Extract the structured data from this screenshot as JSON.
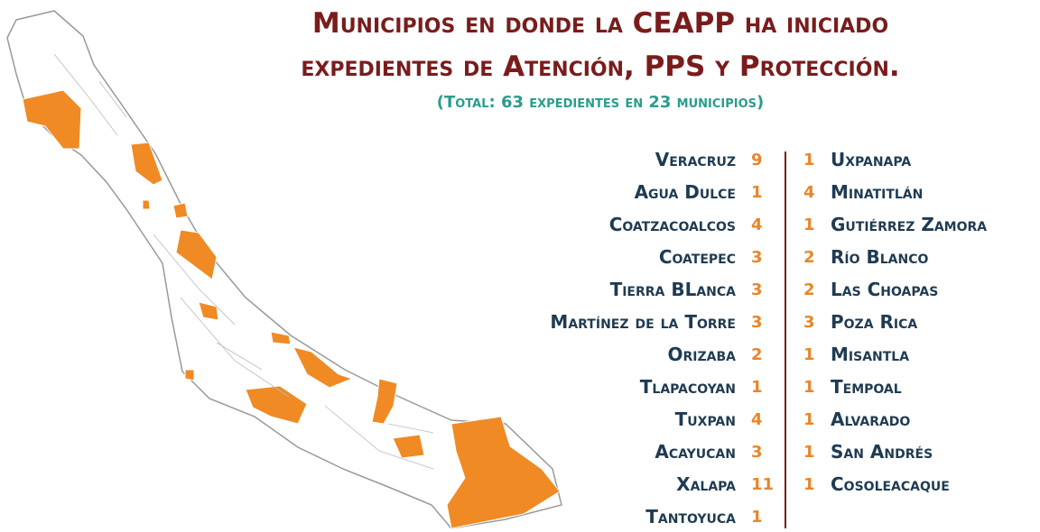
{
  "title_line1": "Municipios en donde la CEAPP ha iniciado",
  "title_line2": "expedientes de Atención, PPS y Protección.",
  "subtitle": "(Total: 63 expedientes en 23 municipios)",
  "left_list": [
    {
      "name": "Veracruz",
      "count": 9
    },
    {
      "name": "Agua Dulce",
      "count": 1
    },
    {
      "name": "Coatzacoalcos",
      "count": 4
    },
    {
      "name": "Coatepec",
      "count": 3
    },
    {
      "name": "Tierra BLanca",
      "count": 3
    },
    {
      "name": "Martínez de la Torre",
      "count": 3
    },
    {
      "name": "Orizaba",
      "count": 2
    },
    {
      "name": "Tlapacoyan",
      "count": 1
    },
    {
      "name": "Tuxpan",
      "count": 4
    },
    {
      "name": "Acayucan",
      "count": 3
    },
    {
      "name": "Xalapa",
      "count": 11
    },
    {
      "name": "Tantoyuca",
      "count": 1
    }
  ],
  "right_list": [
    {
      "count": 1,
      "name": "Uxpanapa"
    },
    {
      "count": 4,
      "name": "Minatitlán"
    },
    {
      "count": 1,
      "name": "Gutiérrez Zamora"
    },
    {
      "count": 2,
      "name": "Río Blanco"
    },
    {
      "count": 2,
      "name": "Las Choapas"
    },
    {
      "count": 3,
      "name": "Poza Rica"
    },
    {
      "count": 1,
      "name": "Misantla"
    },
    {
      "count": 1,
      "name": "Tempoal"
    },
    {
      "count": 1,
      "name": "Alvarado"
    },
    {
      "count": 1,
      "name": "San Andrés"
    },
    {
      "count": 1,
      "name": "Cosoleacaque"
    }
  ]
}
